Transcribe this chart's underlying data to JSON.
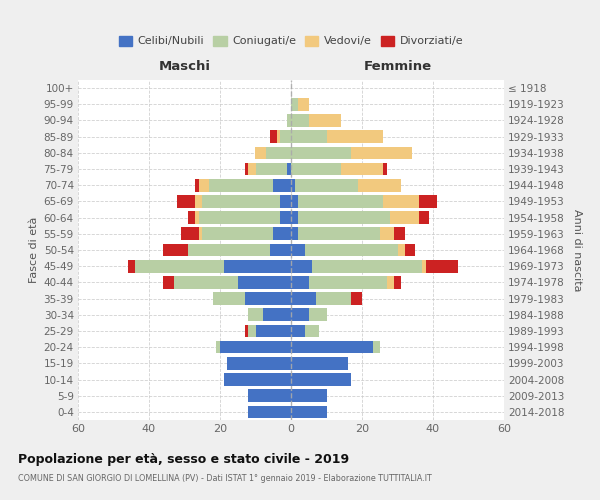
{
  "age_groups": [
    "0-4",
    "5-9",
    "10-14",
    "15-19",
    "20-24",
    "25-29",
    "30-34",
    "35-39",
    "40-44",
    "45-49",
    "50-54",
    "55-59",
    "60-64",
    "65-69",
    "70-74",
    "75-79",
    "80-84",
    "85-89",
    "90-94",
    "95-99",
    "100+"
  ],
  "birth_years": [
    "2014-2018",
    "2009-2013",
    "2004-2008",
    "1999-2003",
    "1994-1998",
    "1989-1993",
    "1984-1988",
    "1979-1983",
    "1974-1978",
    "1969-1973",
    "1964-1968",
    "1959-1963",
    "1954-1958",
    "1949-1953",
    "1944-1948",
    "1939-1943",
    "1934-1938",
    "1929-1933",
    "1924-1928",
    "1919-1923",
    "≤ 1918"
  ],
  "colors": {
    "celibi": "#4472c4",
    "coniugati": "#b8cfa4",
    "vedovi": "#f2c97e",
    "divorziati": "#cc2222"
  },
  "maschi": {
    "celibi": [
      12,
      12,
      19,
      18,
      20,
      10,
      8,
      13,
      15,
      19,
      6,
      5,
      3,
      3,
      5,
      1,
      0,
      0,
      0,
      0,
      0
    ],
    "coniugati": [
      0,
      0,
      0,
      0,
      1,
      2,
      4,
      9,
      18,
      25,
      23,
      20,
      23,
      22,
      18,
      9,
      7,
      3,
      1,
      0,
      0
    ],
    "vedovi": [
      0,
      0,
      0,
      0,
      0,
      0,
      0,
      0,
      0,
      0,
      0,
      1,
      1,
      2,
      3,
      2,
      3,
      1,
      0,
      0,
      0
    ],
    "divorziati": [
      0,
      0,
      0,
      0,
      0,
      1,
      0,
      0,
      3,
      2,
      7,
      5,
      2,
      5,
      1,
      1,
      0,
      2,
      0,
      0,
      0
    ]
  },
  "femmine": {
    "nubili": [
      10,
      10,
      17,
      16,
      23,
      4,
      5,
      7,
      5,
      6,
      4,
      2,
      2,
      2,
      1,
      0,
      0,
      0,
      0,
      0,
      0
    ],
    "coniugate": [
      0,
      0,
      0,
      0,
      2,
      4,
      5,
      10,
      22,
      31,
      26,
      23,
      26,
      24,
      18,
      14,
      17,
      10,
      5,
      2,
      0
    ],
    "vedove": [
      0,
      0,
      0,
      0,
      0,
      0,
      0,
      0,
      2,
      1,
      2,
      4,
      8,
      10,
      12,
      12,
      17,
      16,
      9,
      3,
      0
    ],
    "divorziate": [
      0,
      0,
      0,
      0,
      0,
      0,
      0,
      3,
      2,
      9,
      3,
      3,
      3,
      5,
      0,
      1,
      0,
      0,
      0,
      0,
      0
    ]
  },
  "title": "Popolazione per età, sesso e stato civile - 2019",
  "subtitle": "COMUNE DI SAN GIORGIO DI LOMELLINA (PV) - Dati ISTAT 1° gennaio 2019 - Elaborazione TUTTITALIA.IT",
  "xlabel_left": "Maschi",
  "xlabel_right": "Femmine",
  "ylabel_left": "Fasce di età",
  "ylabel_right": "Anni di nascita",
  "xlim": 60,
  "legend_labels": [
    "Celibi/Nubili",
    "Coniugati/e",
    "Vedovi/e",
    "Divorziati/e"
  ],
  "bg_color": "#efefef",
  "plot_bg_color": "#ffffff",
  "grid_color": "#cccccc"
}
